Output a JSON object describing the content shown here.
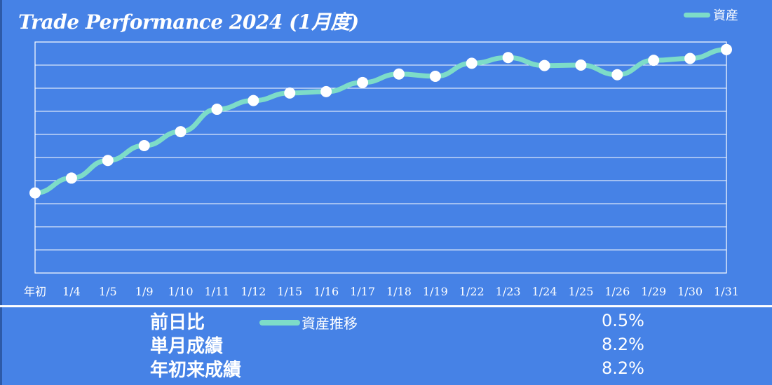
{
  "title": "Trade Performance 2024 (1月度)",
  "colors": {
    "background": "#4682e6",
    "line": "#7ddcc8",
    "marker": "#ffffff",
    "grid": "#ffffff"
  },
  "chart_data": {
    "type": "line",
    "title": "Trade Performance 2024 (1月度)",
    "categories": [
      "年初",
      "1/4",
      "1/5",
      "1/9",
      "1/10",
      "1/11",
      "1/12",
      "1/15",
      "1/16",
      "1/17",
      "1/18",
      "1/19",
      "1/22",
      "1/23",
      "1/24",
      "1/25",
      "1/26",
      "1/29",
      "1/30",
      "1/31"
    ],
    "series": [
      {
        "name": "資産",
        "values": [
          0.0,
          0.65,
          1.42,
          2.07,
          2.68,
          3.66,
          4.04,
          4.37,
          4.43,
          4.83,
          5.2,
          5.1,
          5.67,
          5.92,
          5.57,
          5.59,
          5.17,
          5.8,
          5.88,
          6.27
        ]
      }
    ],
    "ylim": [
      -3.5,
      6.6
    ],
    "y_tick_labels_shown": false,
    "grid": true,
    "legend": "top-right"
  },
  "legend_bottom": "資産推移",
  "summary": [
    {
      "label": "前日比",
      "value": "0.5%"
    },
    {
      "label": "単月成績",
      "value": "8.2%"
    },
    {
      "label": "年初来成績",
      "value": "8.2%"
    }
  ]
}
